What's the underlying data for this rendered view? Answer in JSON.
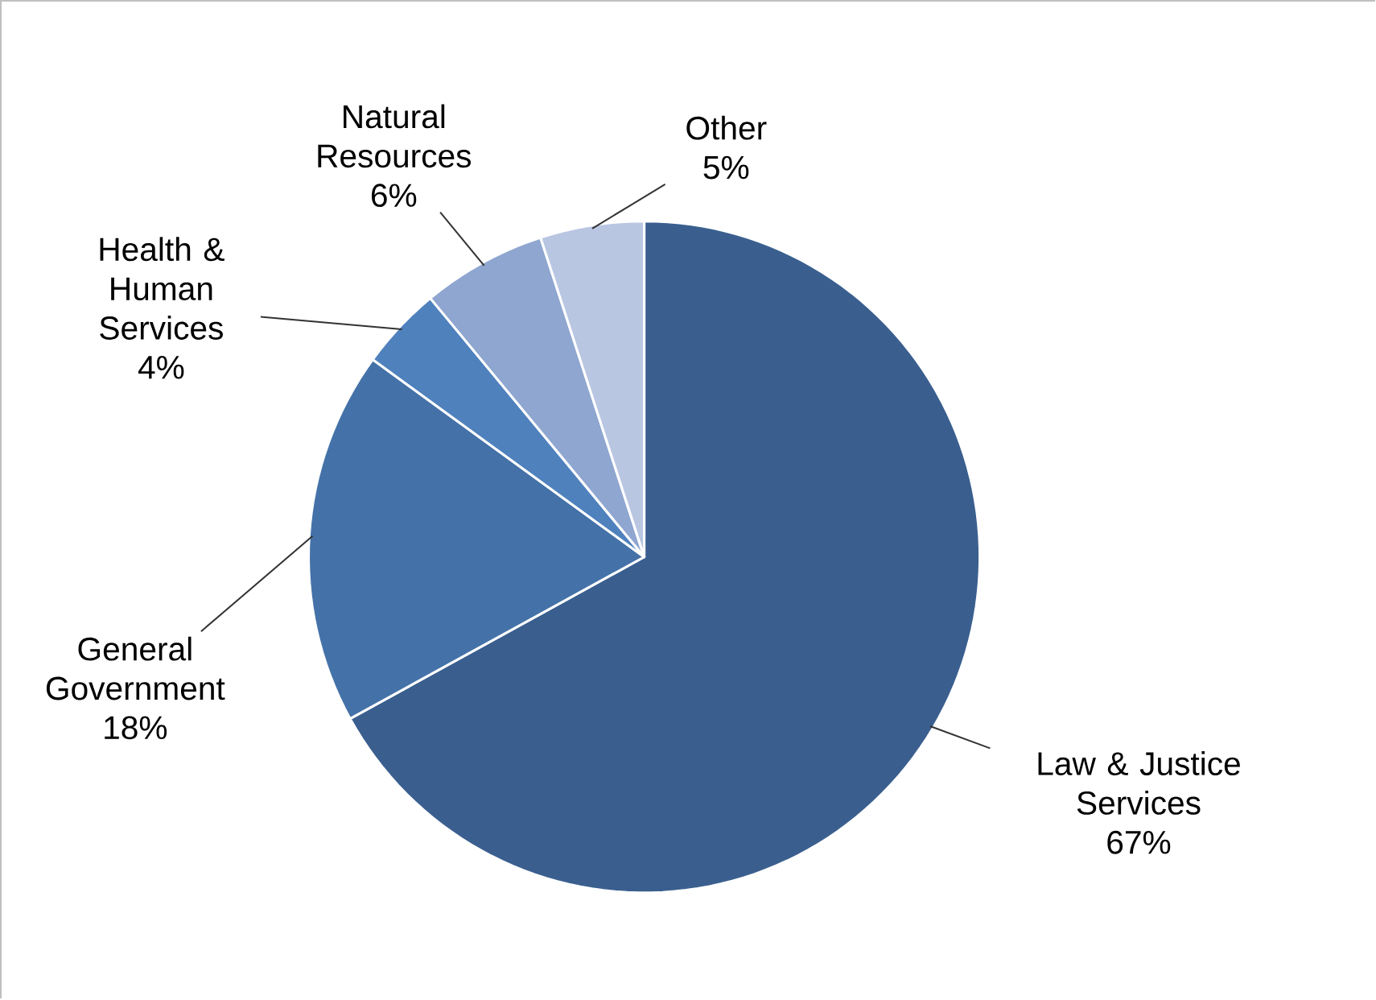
{
  "chart_data": {
    "type": "pie",
    "categories": [
      "Law & Justice Services",
      "General Government",
      "Health & Human Services",
      "Natural Resources",
      "Other"
    ],
    "values": [
      67,
      18,
      4,
      6,
      5
    ],
    "value_labels": [
      "67%",
      "18%",
      "4%",
      "6%",
      "5%"
    ],
    "colors": [
      "#3a5f8f",
      "#4472a8",
      "#4f81bd",
      "#8fa6d0",
      "#b9c6e2"
    ]
  }
}
